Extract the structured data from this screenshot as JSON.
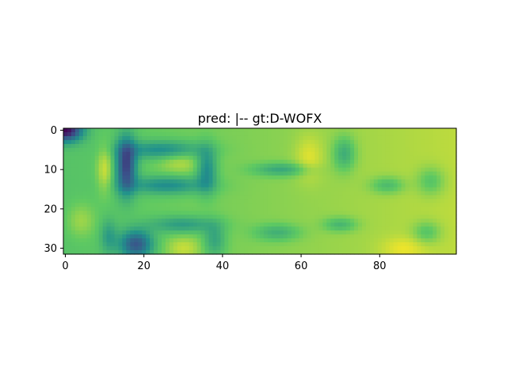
{
  "title": "pred: |-- gt:D-WOFX",
  "colormap": "viridis",
  "image": {
    "rows": 32,
    "cols": 100,
    "description_values_range": [
      0,
      1
    ]
  },
  "axes": {
    "x_ticks": [
      "0",
      "20",
      "40",
      "60",
      "80"
    ],
    "y_ticks": [
      "0",
      "10",
      "20",
      "30"
    ]
  },
  "colors": {
    "dark": "#440154",
    "blue": "#3b528b",
    "teal": "#21918c",
    "green": "#5ec962",
    "yellow": "#fde725"
  }
}
